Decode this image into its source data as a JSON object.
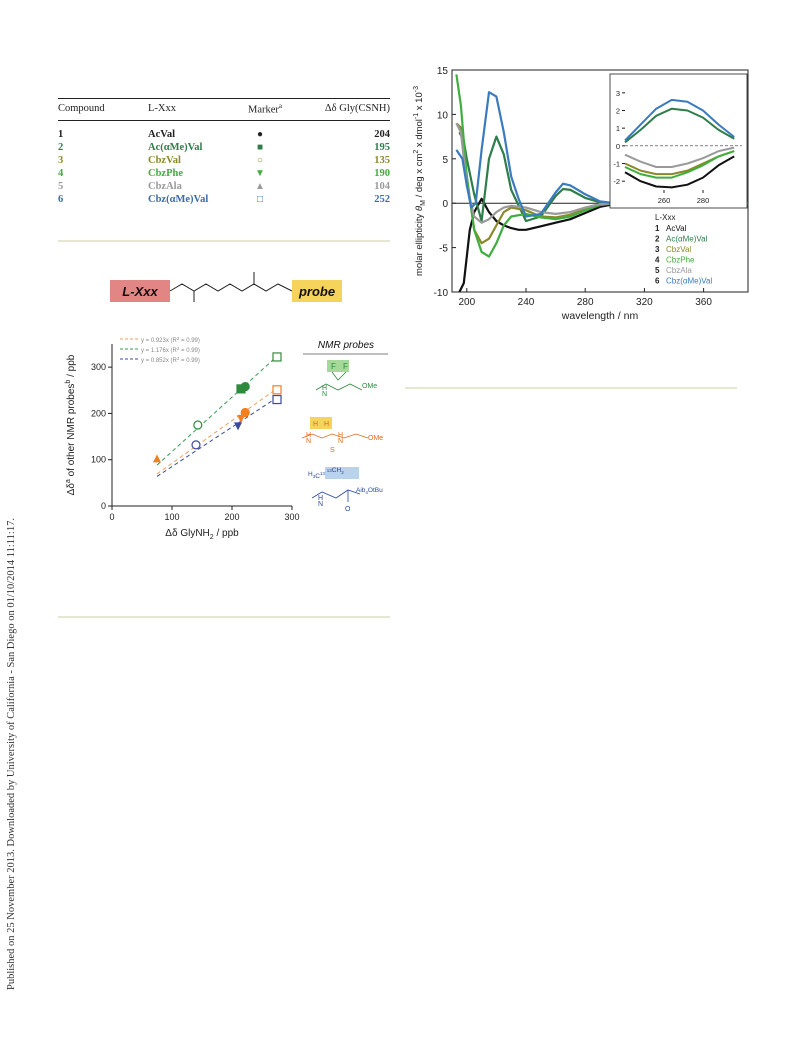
{
  "side_note": "Published on 25 November 2013. Downloaded by University of California - San Diego on 01/10/2014 11:11:17.",
  "table": {
    "headers": [
      "Compound",
      "L-Xxx",
      "Marker",
      "a",
      "Δδ Gly(CSNH)"
    ],
    "rows": [
      {
        "num": "1",
        "name": "AcVal",
        "marker": "●",
        "value": "204",
        "color": "#222222"
      },
      {
        "num": "2",
        "name": "Ac(αMe)Val",
        "marker": "■",
        "value": "195",
        "color": "#2e7d4a"
      },
      {
        "num": "3",
        "name": "CbzVal",
        "marker": "○",
        "value": "135",
        "color": "#8a8a2a"
      },
      {
        "num": "4",
        "name": "CbzPhe",
        "marker": "▼",
        "value": "190",
        "color": "#3fae3f"
      },
      {
        "num": "5",
        "name": "CbzAla",
        "marker": "▲",
        "value": "104",
        "color": "#9a9a9a"
      },
      {
        "num": "6",
        "name": "Cbz(αMe)Val",
        "marker": "□",
        "value": "252",
        "color": "#3a6cb0"
      }
    ]
  },
  "scheme": {
    "left_label": "L-Xxx",
    "right_label": "probe",
    "left_color": "#e28585",
    "right_color": "#f6d35a"
  },
  "chart_data": [
    {
      "type": "scatter",
      "xlabel": "Δδ GlyNH",
      "xlabel_sub": "2",
      "xlabel_unit": " / ppb",
      "ylabel": "Δδ",
      "ylabel_sup_a": "a",
      "ylabel_mid": " of other NMR probes",
      "ylabel_sup_b": "b",
      "ylabel_unit": " / ppb",
      "xlim": [
        0,
        300
      ],
      "ylim": [
        0,
        350
      ],
      "xticks": [
        0,
        100,
        200,
        300
      ],
      "yticks": [
        0,
        100,
        200,
        300
      ],
      "fit_lines": [
        {
          "label": "y = 0.923x (R",
          "sup": "2",
          "end": " = 0.99)",
          "slope": 0.923,
          "x_range": [
            75,
            275
          ],
          "color": "#f0a060"
        },
        {
          "label": "y = 1.176x (R",
          "sup": "2",
          "end": " = 0.99)",
          "slope": 1.176,
          "x_range": [
            75,
            275
          ],
          "color": "#3a9a50"
        },
        {
          "label": "y = 0.852x (R",
          "sup": "2",
          "end": " = 0.99)",
          "slope": 0.852,
          "x_range": [
            75,
            275
          ],
          "color": "#3a4aa0"
        }
      ],
      "series": [
        {
          "color": "#2e8b3e",
          "points": [
            {
              "x": 143,
              "y": 175,
              "marker": "circle-open"
            },
            {
              "x": 215,
              "y": 253,
              "marker": "square"
            },
            {
              "x": 222,
              "y": 258,
              "marker": "circle"
            },
            {
              "x": 275,
              "y": 322,
              "marker": "square-open"
            }
          ]
        },
        {
          "color": "#f08020",
          "points": [
            {
              "x": 75,
              "y": 103,
              "marker": "triangle"
            },
            {
              "x": 215,
              "y": 188,
              "marker": "triangle-down"
            },
            {
              "x": 222,
              "y": 202,
              "marker": "circle"
            },
            {
              "x": 275,
              "y": 251,
              "marker": "square-open"
            }
          ]
        },
        {
          "color": "#3a4aa0",
          "points": [
            {
              "x": 140,
              "y": 132,
              "marker": "circle-open"
            },
            {
              "x": 210,
              "y": 172,
              "marker": "triangle-down"
            },
            {
              "x": 275,
              "y": 230,
              "marker": "square-open"
            }
          ]
        }
      ],
      "probes_title": "NMR probes",
      "probe_labels": {
        "p1": [
          "F",
          "F",
          "N",
          "H",
          "OMe"
        ],
        "p2": [
          "H",
          "H",
          "N",
          "H",
          "S",
          "N",
          "H",
          "OMe"
        ],
        "p3": [
          "H",
          "3",
          "13",
          "C",
          "13",
          "CH",
          "3",
          "N",
          "H",
          "Aib",
          "4",
          "OtBu",
          "O"
        ]
      }
    },
    {
      "type": "line",
      "xlabel": "wavelength / nm",
      "ylabel_parts": [
        "molar ellipticity ",
        "θ",
        "M",
        " / deg x cm",
        "2",
        " x dmol",
        "-1",
        " x 10",
        "-3"
      ],
      "xlim": [
        190,
        390
      ],
      "ylim": [
        -10,
        15
      ],
      "xticks": [
        200,
        240,
        280,
        320,
        360
      ],
      "yticks": [
        -10,
        -5,
        0,
        5,
        10,
        15
      ],
      "legend_title": "L-Xxx",
      "legend": [
        {
          "num": "1",
          "name": "AcVal",
          "color": "#111111"
        },
        {
          "num": "2",
          "name": "Ac(αMe)Val",
          "color": "#2e7d4a"
        },
        {
          "num": "3",
          "name": "CbzVal",
          "color": "#8a8a2a"
        },
        {
          "num": "4",
          "name": "CbzPhe",
          "color": "#3fae3f"
        },
        {
          "num": "5",
          "name": "CbzAla",
          "color": "#9a9a9a"
        },
        {
          "num": "6",
          "name": "Cbz(αMe)Val",
          "color": "#3a7bbf"
        }
      ],
      "series": [
        {
          "name": "AcVal",
          "color": "#111111",
          "x": [
            195,
            198,
            200,
            202,
            205,
            210,
            215,
            220,
            225,
            230,
            235,
            240,
            250,
            260,
            270,
            280,
            290,
            300,
            320,
            340,
            360,
            390
          ],
          "y": [
            -10,
            -9,
            -6,
            -3,
            -1,
            0.5,
            -1,
            -2,
            -2.5,
            -2.8,
            -3,
            -3,
            -2.6,
            -2.2,
            -1.8,
            -1.1,
            -0.4,
            -0.1,
            0,
            0,
            0,
            0
          ]
        },
        {
          "name": "Ac(αMe)Val",
          "color": "#2e7d4a",
          "x": [
            195,
            198,
            200,
            205,
            210,
            215,
            220,
            225,
            230,
            240,
            250,
            260,
            265,
            270,
            280,
            290,
            300,
            320,
            340,
            390
          ],
          "y": [
            8,
            7,
            5,
            1,
            -2,
            5,
            7.5,
            5.5,
            1.5,
            -2,
            -1.5,
            0.8,
            1.6,
            1.5,
            0.6,
            0.1,
            0,
            0,
            0,
            0
          ]
        },
        {
          "name": "CbzVal",
          "color": "#8a8a2a",
          "x": [
            193,
            196,
            200,
            205,
            210,
            215,
            220,
            225,
            230,
            240,
            250,
            260,
            270,
            280,
            290,
            300,
            320,
            340,
            390
          ],
          "y": [
            9,
            8.5,
            3,
            -3,
            -4.5,
            -4,
            -2.5,
            -1,
            -0.5,
            -0.8,
            -1.5,
            -1.6,
            -1.3,
            -0.7,
            -0.2,
            0,
            0,
            0,
            0
          ]
        },
        {
          "name": "CbzPhe",
          "color": "#3fae3f",
          "x": [
            193,
            196,
            200,
            205,
            210,
            215,
            220,
            225,
            230,
            240,
            250,
            260,
            270,
            280,
            290,
            300,
            320,
            340,
            390
          ],
          "y": [
            14.5,
            11,
            3,
            -3,
            -5.5,
            -6,
            -4.5,
            -2.5,
            -1.5,
            -1.2,
            -1.6,
            -1.8,
            -1.5,
            -0.8,
            -0.2,
            0,
            0,
            0,
            0
          ]
        },
        {
          "name": "CbzAla",
          "color": "#9a9a9a",
          "x": [
            193,
            196,
            200,
            205,
            210,
            215,
            220,
            225,
            230,
            240,
            250,
            260,
            270,
            280,
            290,
            300,
            320,
            340,
            390
          ],
          "y": [
            9,
            8,
            2,
            -1.5,
            -2.2,
            -1.8,
            -1,
            -0.5,
            -0.3,
            -0.5,
            -1,
            -1.2,
            -1,
            -0.5,
            -0.1,
            0,
            0,
            0,
            0
          ]
        },
        {
          "name": "Cbz(αMe)Val",
          "color": "#3a7bbf",
          "x": [
            193,
            197,
            200,
            203,
            206,
            210,
            215,
            220,
            225,
            230,
            235,
            240,
            250,
            260,
            265,
            270,
            280,
            290,
            300,
            320,
            340,
            390
          ],
          "y": [
            6,
            5,
            2,
            -0.5,
            0,
            6,
            12.5,
            12,
            8,
            3,
            0.5,
            -1.5,
            -1.2,
            1.2,
            2.2,
            2,
            1,
            0.2,
            0,
            0,
            0,
            0
          ]
        }
      ],
      "inset": {
        "xlim": [
          240,
          300
        ],
        "ylim": [
          -2.5,
          3.5
        ],
        "xticks": [
          260,
          280
        ],
        "yticks": [
          -2,
          -1,
          0,
          1,
          2,
          3
        ],
        "series": [
          {
            "color": "#111111",
            "x": [
              240,
              248,
              256,
              264,
              272,
              280,
              288,
              296
            ],
            "y": [
              -1.5,
              -2.0,
              -2.3,
              -2.35,
              -2.2,
              -1.8,
              -1.1,
              -0.6
            ]
          },
          {
            "color": "#2e7d4a",
            "x": [
              240,
              248,
              256,
              264,
              272,
              280,
              288,
              296
            ],
            "y": [
              0.2,
              0.9,
              1.7,
              2.1,
              2.0,
              1.6,
              0.9,
              0.4
            ]
          },
          {
            "color": "#8a8a2a",
            "x": [
              240,
              248,
              256,
              264,
              272,
              280,
              288,
              296
            ],
            "y": [
              -1.0,
              -1.4,
              -1.6,
              -1.6,
              -1.4,
              -1.0,
              -0.6,
              -0.3
            ]
          },
          {
            "color": "#3fae3f",
            "x": [
              240,
              248,
              256,
              264,
              272,
              280,
              288,
              296
            ],
            "y": [
              -1.2,
              -1.6,
              -1.8,
              -1.8,
              -1.5,
              -1.1,
              -0.6,
              -0.3
            ]
          },
          {
            "color": "#9a9a9a",
            "x": [
              240,
              248,
              256,
              264,
              272,
              280,
              288,
              296
            ],
            "y": [
              -0.5,
              -0.9,
              -1.2,
              -1.2,
              -1.0,
              -0.7,
              -0.3,
              -0.1
            ]
          },
          {
            "color": "#3a7bbf",
            "x": [
              240,
              248,
              256,
              264,
              272,
              280,
              288,
              296
            ],
            "y": [
              0.3,
              1.2,
              2.1,
              2.6,
              2.5,
              2.0,
              1.2,
              0.5
            ]
          }
        ]
      }
    }
  ]
}
